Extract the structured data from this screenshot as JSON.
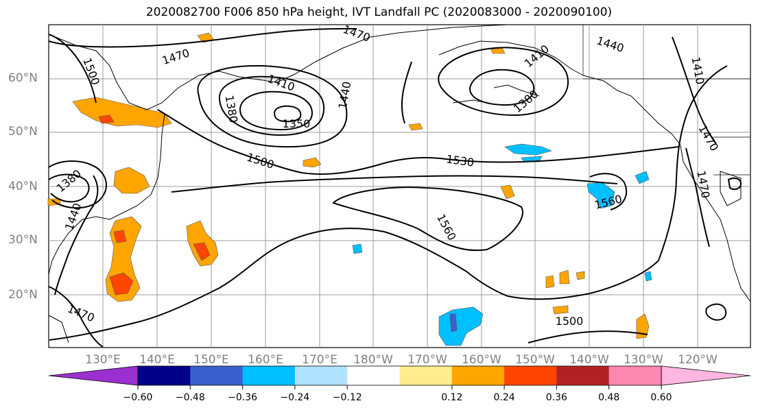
{
  "title": "2020082700 F006 850 hPa height, IVT Landfall PC (2020083000 - 2020090100)",
  "lat_labels": [
    "60°N",
    "50°N",
    "40°N",
    "30°N",
    "20°N"
  ],
  "lon_labels": [
    "130°E",
    "140°E",
    "150°E",
    "160°E",
    "170°E",
    "180°W",
    "170°W",
    "160°W",
    "150°W",
    "140°W",
    "130°W",
    "120°W"
  ],
  "contour_labels": [
    "1470",
    "1500",
    "1470",
    "1410",
    "1380",
    "1350",
    "1440",
    "1410",
    "1380",
    "1440",
    "1410",
    "1500",
    "1530",
    "1560",
    "1560",
    "1470",
    "1470",
    "1380",
    "1440",
    "1470",
    "1500"
  ],
  "colorbar": {
    "ticks": [
      "−0.60",
      "−0.48",
      "−0.36",
      "−0.24",
      "−0.12",
      "0.12",
      "0.24",
      "0.36",
      "0.48",
      "0.60"
    ],
    "colors": [
      "#9b30d0",
      "#00008b",
      "#3a5fcd",
      "#00bfff",
      "#b0e2ff",
      "#ffffff",
      "#ffec8b",
      "#ffa500",
      "#ff4500",
      "#b22222",
      "#ff88b0",
      "#ffb6e1"
    ]
  }
}
